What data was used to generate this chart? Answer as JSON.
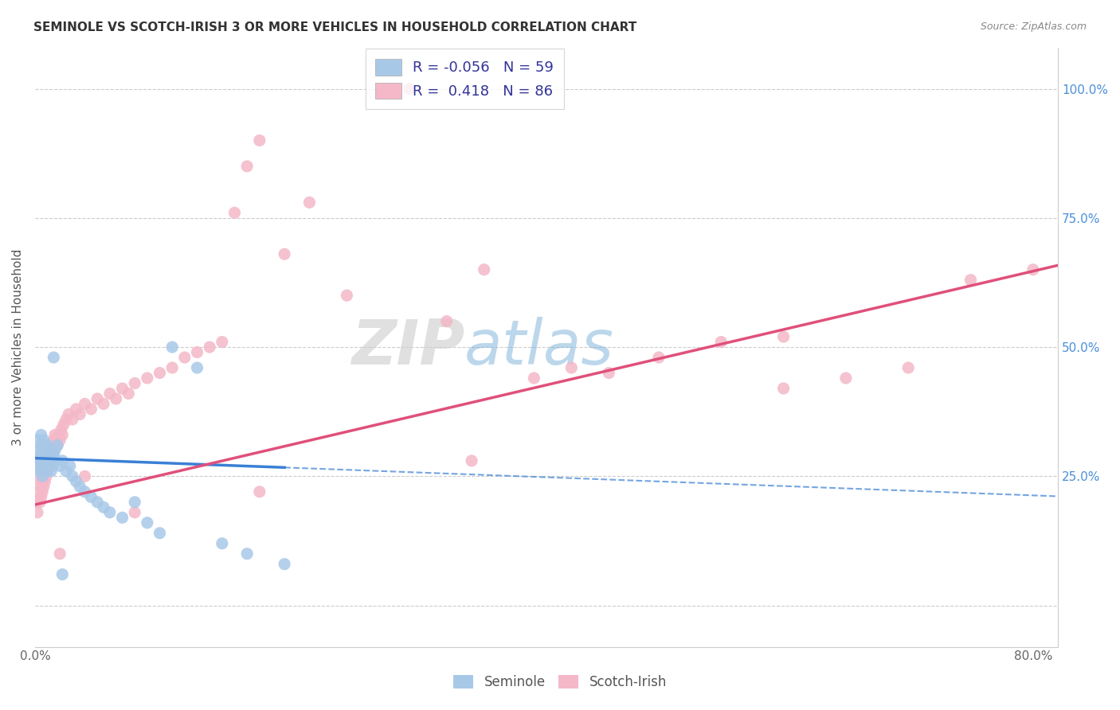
{
  "title": "SEMINOLE VS SCOTCH-IRISH 3 OR MORE VEHICLES IN HOUSEHOLD CORRELATION CHART",
  "source": "Source: ZipAtlas.com",
  "ylabel": "3 or more Vehicles in Household",
  "seminole_R": -0.056,
  "seminole_N": 59,
  "scotchirish_R": 0.418,
  "scotchirish_N": 86,
  "seminole_color": "#a8c8e8",
  "scotchirish_color": "#f4b8c8",
  "seminole_line_color": "#3a7fd5",
  "scotchirish_line_color": "#e0507a",
  "legend_seminole": "Seminole",
  "legend_scotchirish": "Scotch-Irish",
  "xlim": [
    0.0,
    0.82
  ],
  "ylim": [
    -0.08,
    1.08
  ],
  "x_ticks": [
    0.0,
    0.1,
    0.2,
    0.3,
    0.4,
    0.5,
    0.6,
    0.7,
    0.8
  ],
  "x_tick_labels": [
    "0.0%",
    "",
    "",
    "",
    "",
    "",
    "",
    "",
    "80.0%"
  ],
  "y_ticks_right": [
    0.0,
    0.25,
    0.5,
    0.75,
    1.0
  ],
  "y_tick_labels_right": [
    "",
    "25.0%",
    "50.0%",
    "75.0%",
    "100.0%"
  ],
  "seminole_x": [
    0.001,
    0.002,
    0.003,
    0.003,
    0.004,
    0.004,
    0.005,
    0.005,
    0.005,
    0.006,
    0.006,
    0.006,
    0.007,
    0.007,
    0.007,
    0.007,
    0.008,
    0.008,
    0.008,
    0.009,
    0.009,
    0.009,
    0.01,
    0.01,
    0.01,
    0.011,
    0.011,
    0.012,
    0.012,
    0.013,
    0.013,
    0.014,
    0.015,
    0.016,
    0.016,
    0.018,
    0.02,
    0.022,
    0.025,
    0.028,
    0.03,
    0.033,
    0.036,
    0.04,
    0.045,
    0.05,
    0.055,
    0.06,
    0.07,
    0.08,
    0.09,
    0.1,
    0.11,
    0.13,
    0.15,
    0.17,
    0.2,
    0.015,
    0.022
  ],
  "seminole_y": [
    0.27,
    0.28,
    0.3,
    0.32,
    0.26,
    0.29,
    0.27,
    0.31,
    0.33,
    0.25,
    0.28,
    0.3,
    0.26,
    0.28,
    0.3,
    0.32,
    0.27,
    0.29,
    0.31,
    0.26,
    0.28,
    0.3,
    0.27,
    0.29,
    0.31,
    0.28,
    0.3,
    0.27,
    0.29,
    0.26,
    0.28,
    0.27,
    0.29,
    0.28,
    0.3,
    0.31,
    0.27,
    0.28,
    0.26,
    0.27,
    0.25,
    0.24,
    0.23,
    0.22,
    0.21,
    0.2,
    0.19,
    0.18,
    0.17,
    0.2,
    0.16,
    0.14,
    0.5,
    0.46,
    0.12,
    0.1,
    0.08,
    0.48,
    0.06
  ],
  "scotchirish_x": [
    0.001,
    0.002,
    0.003,
    0.003,
    0.004,
    0.004,
    0.005,
    0.005,
    0.006,
    0.006,
    0.007,
    0.007,
    0.007,
    0.008,
    0.008,
    0.009,
    0.009,
    0.01,
    0.01,
    0.01,
    0.011,
    0.011,
    0.012,
    0.012,
    0.013,
    0.013,
    0.014,
    0.014,
    0.015,
    0.015,
    0.016,
    0.016,
    0.017,
    0.018,
    0.019,
    0.02,
    0.021,
    0.022,
    0.023,
    0.025,
    0.027,
    0.03,
    0.033,
    0.036,
    0.04,
    0.045,
    0.05,
    0.055,
    0.06,
    0.065,
    0.07,
    0.075,
    0.08,
    0.09,
    0.1,
    0.11,
    0.12,
    0.13,
    0.14,
    0.15,
    0.16,
    0.17,
    0.18,
    0.2,
    0.22,
    0.25,
    0.28,
    0.3,
    0.33,
    0.36,
    0.4,
    0.43,
    0.46,
    0.5,
    0.55,
    0.6,
    0.65,
    0.7,
    0.75,
    0.8,
    0.04,
    0.18,
    0.35,
    0.6,
    0.02,
    0.08
  ],
  "scotchirish_y": [
    0.2,
    0.18,
    0.22,
    0.25,
    0.2,
    0.23,
    0.21,
    0.24,
    0.22,
    0.26,
    0.23,
    0.25,
    0.28,
    0.24,
    0.27,
    0.25,
    0.28,
    0.26,
    0.29,
    0.27,
    0.28,
    0.3,
    0.27,
    0.29,
    0.28,
    0.3,
    0.29,
    0.31,
    0.3,
    0.32,
    0.31,
    0.33,
    0.32,
    0.31,
    0.33,
    0.32,
    0.34,
    0.33,
    0.35,
    0.36,
    0.37,
    0.36,
    0.38,
    0.37,
    0.39,
    0.38,
    0.4,
    0.39,
    0.41,
    0.4,
    0.42,
    0.41,
    0.43,
    0.44,
    0.45,
    0.46,
    0.48,
    0.49,
    0.5,
    0.51,
    0.76,
    0.85,
    0.9,
    0.68,
    0.78,
    0.6,
    1.0,
    1.0,
    0.55,
    0.65,
    0.44,
    0.46,
    0.45,
    0.48,
    0.51,
    0.52,
    0.44,
    0.46,
    0.63,
    0.65,
    0.25,
    0.22,
    0.28,
    0.42,
    0.1,
    0.18
  ]
}
